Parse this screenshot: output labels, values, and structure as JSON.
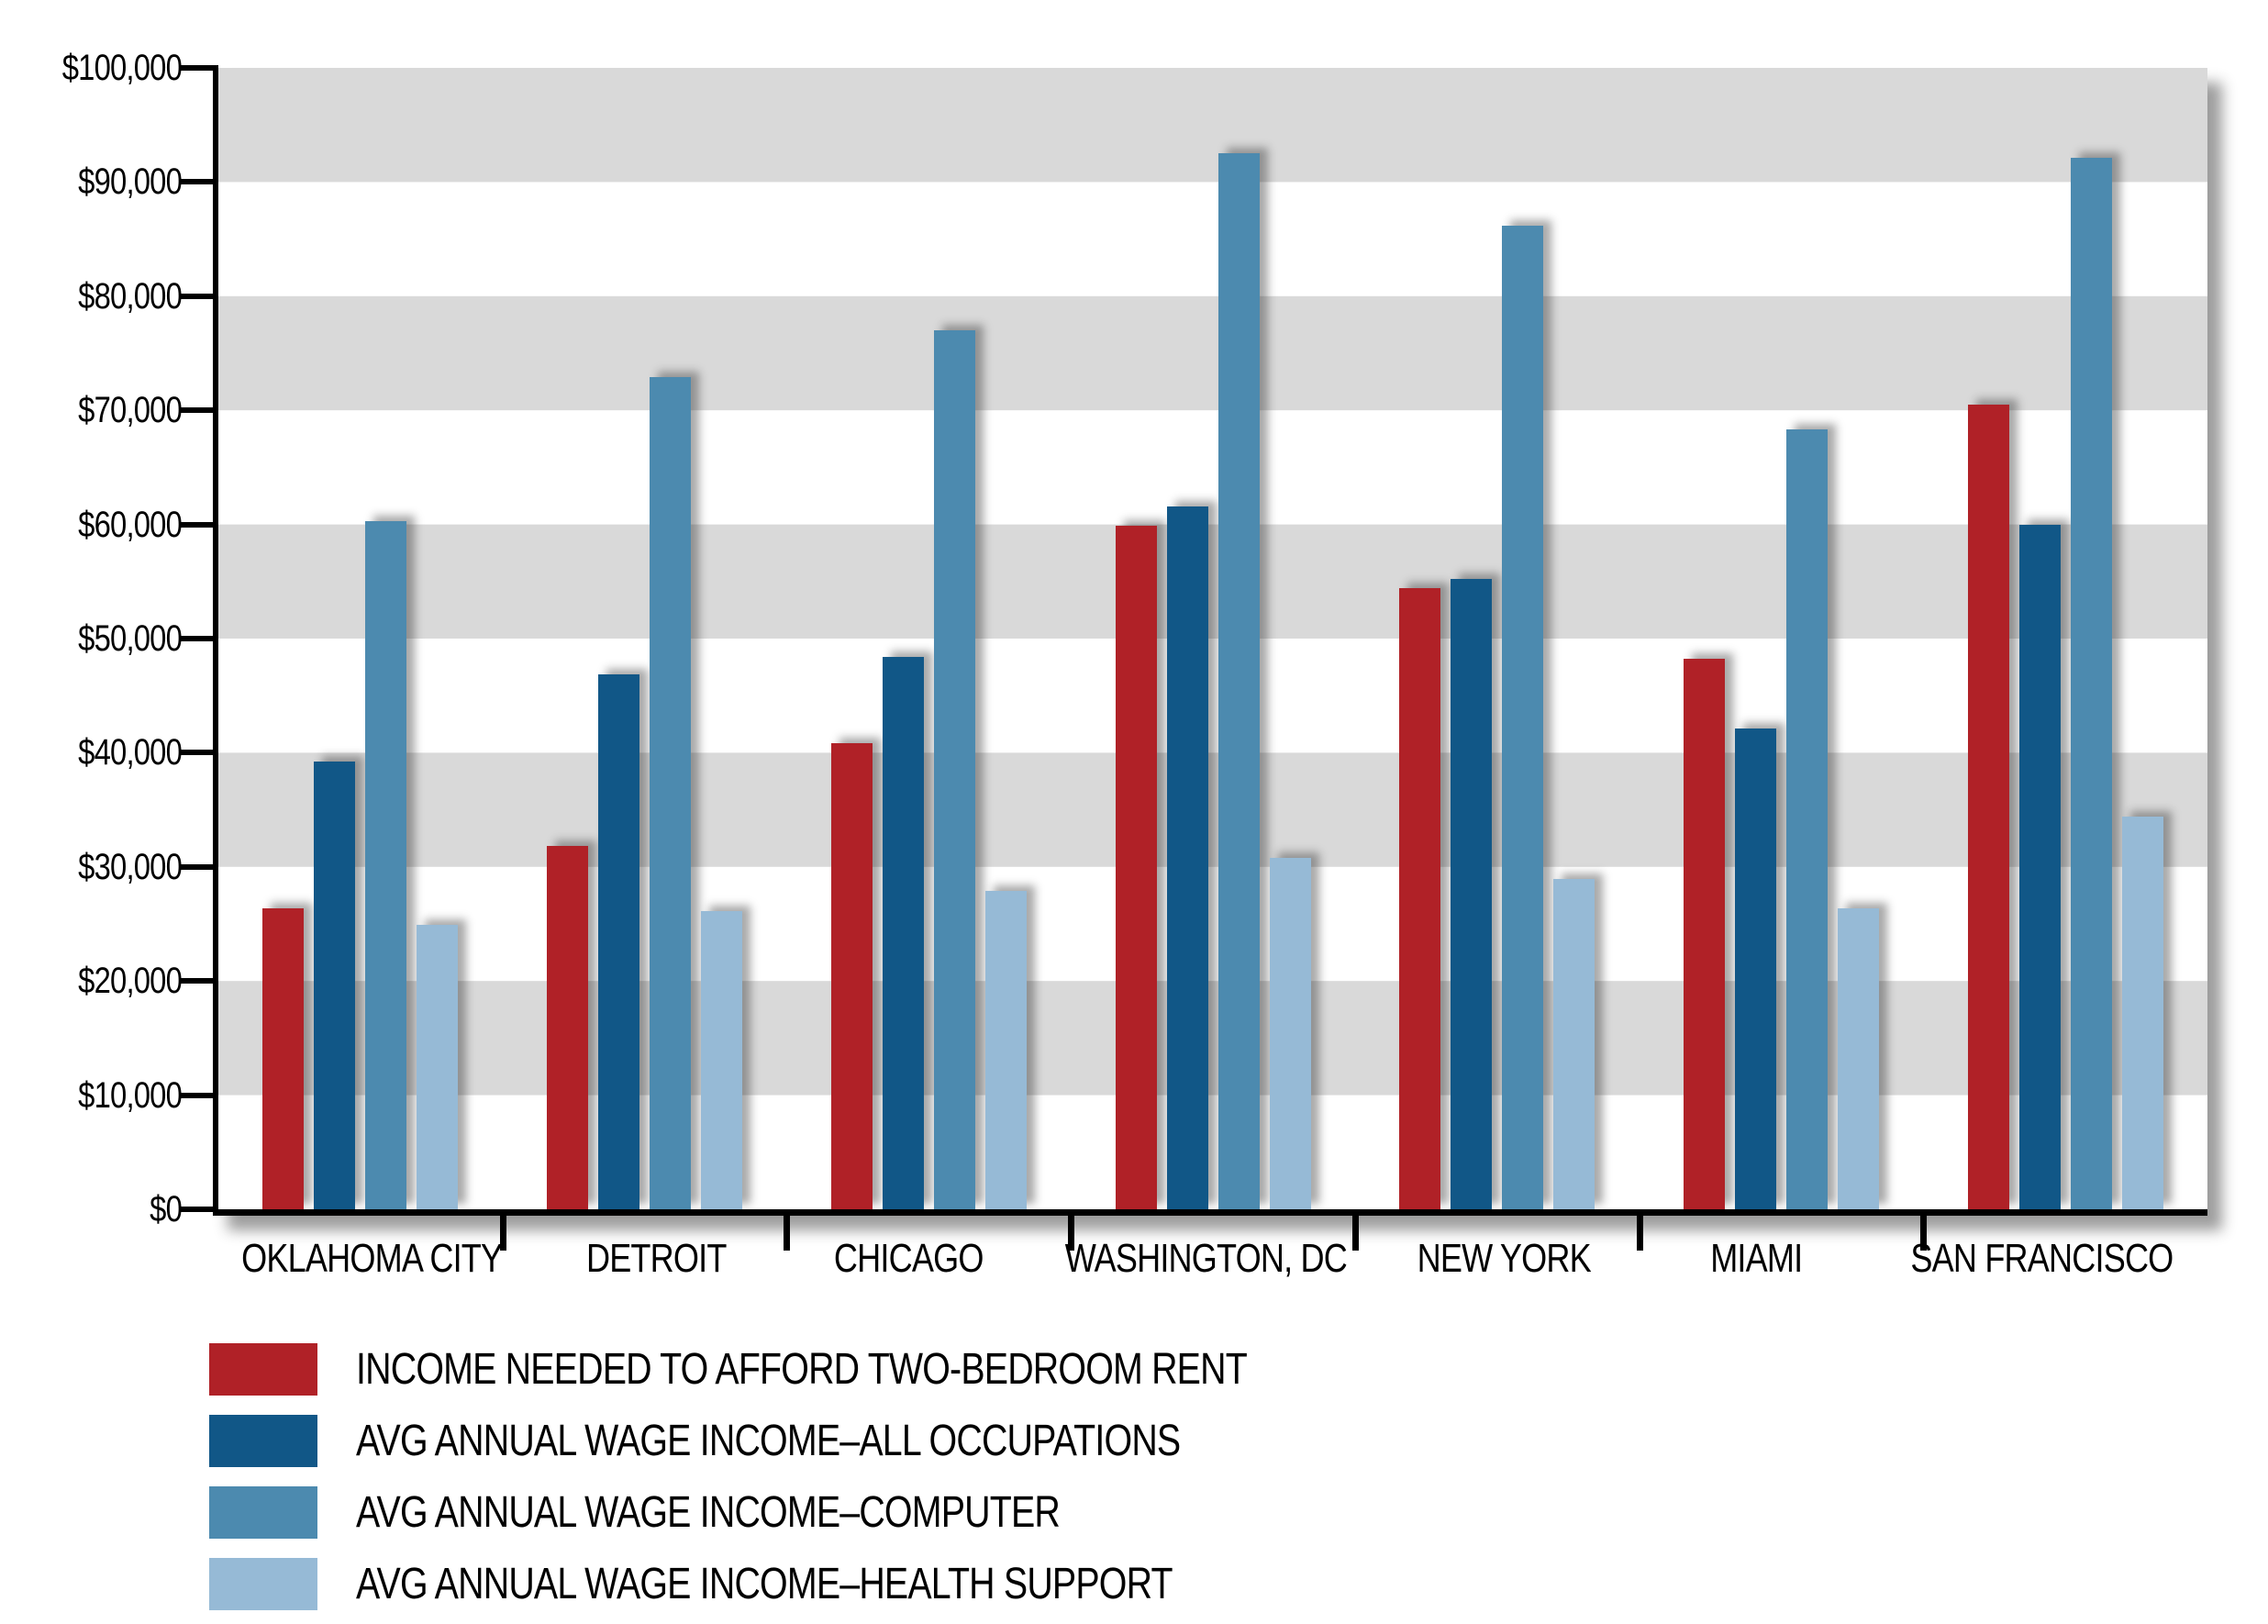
{
  "chart_data": {
    "type": "bar",
    "title": "",
    "categories": [
      "OKLAHOMA CITY",
      "DETROIT",
      "CHICAGO",
      "WASHINGTON, DC",
      "NEW YORK",
      "MIAMI",
      "SAN FRANCISCO"
    ],
    "series": [
      {
        "name": "INCOME NEEDED TO AFFORD TWO-BEDROOM RENT",
        "color": "#B02127",
        "values": [
          26400,
          31800,
          40800,
          59900,
          54400,
          48200,
          70500
        ]
      },
      {
        "name": "AVG ANNUAL WAGE INCOME–ALL OCCUPATIONS",
        "color": "#115787",
        "values": [
          39200,
          46900,
          48400,
          61600,
          55200,
          42100,
          60000
        ]
      },
      {
        "name": "AVG ANNUAL WAGE INCOME–COMPUTER",
        "color": "#4C8AAF",
        "values": [
          60300,
          72900,
          77000,
          92500,
          86200,
          68300,
          92100
        ]
      },
      {
        "name": "AVG ANNUAL WAGE INCOME–HEALTH SUPPORT",
        "color": "#96BAD6",
        "values": [
          24900,
          26100,
          27900,
          30800,
          28900,
          26400,
          34400
        ]
      }
    ],
    "y_axis": {
      "min": 0,
      "max": 100000,
      "step": 10000,
      "tick_labels": [
        "$100,000",
        "$90,000",
        "$80,000",
        "$70,000",
        "$60,000",
        "$50,000",
        "$40,000",
        "$30,000",
        "$20,000",
        "$10,000",
        "$0"
      ]
    },
    "layout": {
      "band_color_odd": "#D9D9D9",
      "band_color_even": "#FFFFFF",
      "axis_color": "#000000",
      "legend_position": "bottom-left",
      "grid": "horizontal-bands"
    }
  }
}
